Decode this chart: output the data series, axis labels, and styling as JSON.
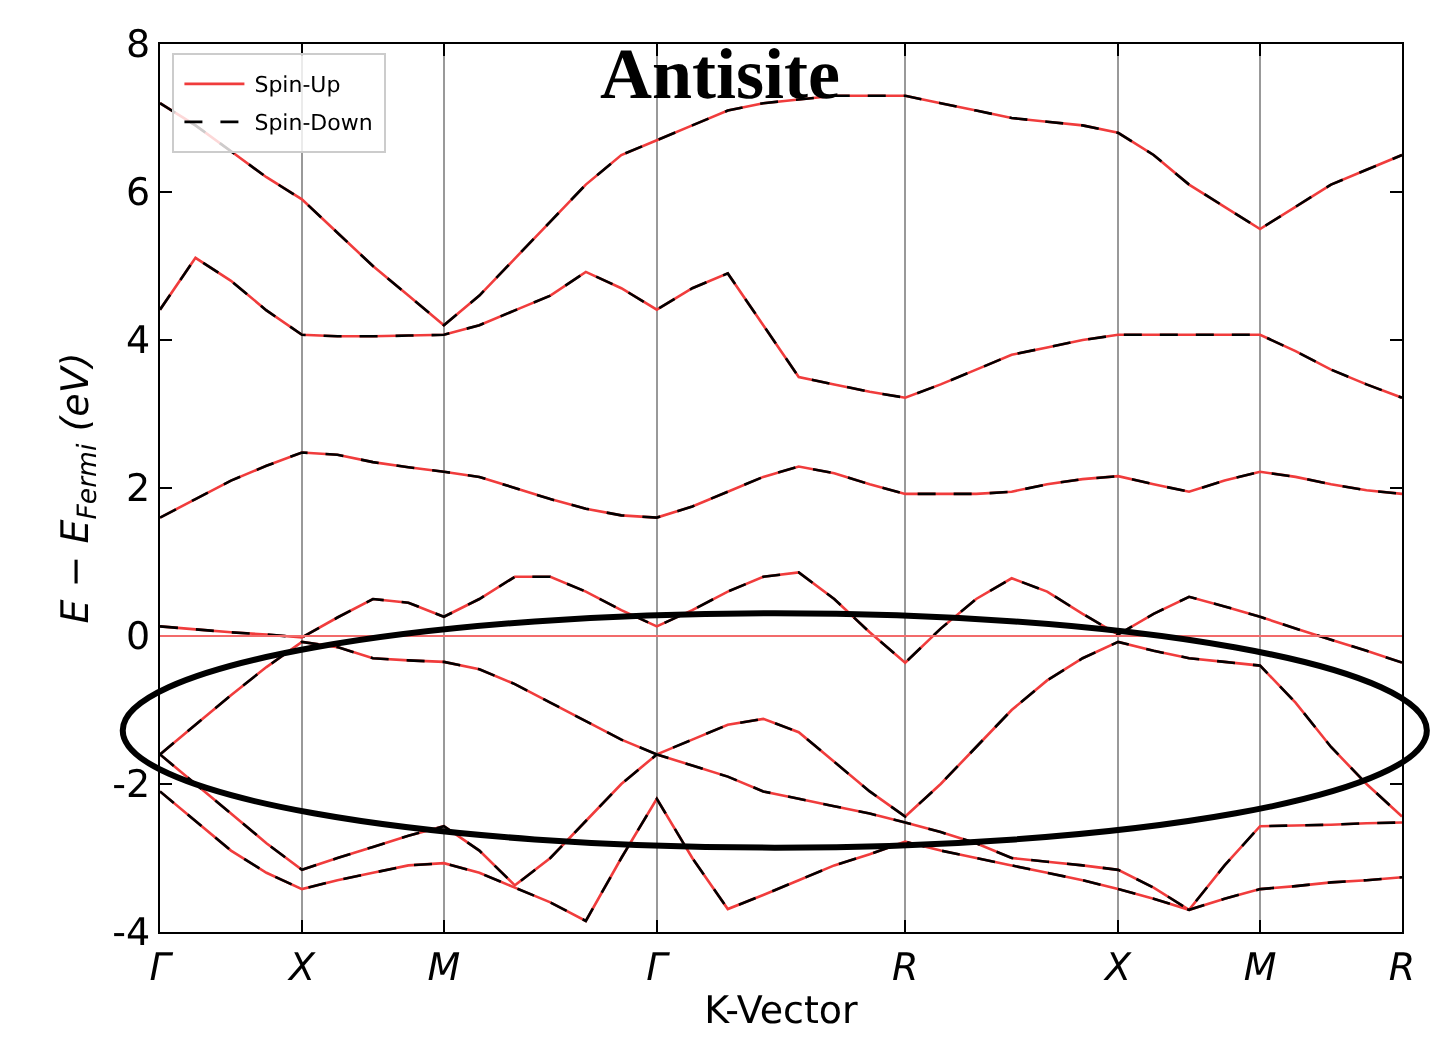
{
  "chart_data": {
    "type": "line",
    "title": "Antisite",
    "xlabel": "K-Vector",
    "ylabel": "E − E$_{Fermi}$ (eV)",
    "categories": [
      "Γ",
      null,
      null,
      null,
      "X",
      null,
      null,
      null,
      "M",
      null,
      null,
      null,
      null,
      null,
      "Γ",
      null,
      null,
      null,
      null,
      null,
      null,
      "R",
      null,
      null,
      null,
      null,
      null,
      "X",
      null,
      null,
      null,
      "M",
      null,
      null,
      null,
      "R"
    ],
    "ylim": [
      -4,
      8
    ],
    "yticks": [
      -4,
      -2,
      0,
      2,
      4,
      6,
      8
    ],
    "grid": "x",
    "legend": "top left",
    "marker": "none",
    "ref_lines": [
      {
        "axis": "y",
        "value": 0,
        "color": "#f26b6b",
        "line_style": "solid"
      }
    ],
    "series": [
      {
        "name": "Spin-Up",
        "color": "#f03c3c",
        "line_style": "solid",
        "values": [
          -1.6,
          -1.2,
          -0.8,
          -0.42,
          -0.08,
          -0.15,
          -0.3,
          -0.33,
          -0.35,
          -0.45,
          -0.65,
          -0.9,
          -1.15,
          -1.4,
          -1.6,
          -1.4,
          -1.2,
          -1.12,
          -1.3,
          -1.7,
          -2.1,
          -2.44,
          -2.0,
          -1.5,
          -1.0,
          -0.6,
          -0.3,
          -0.08,
          -0.2,
          -0.3,
          -0.35,
          -0.4,
          -0.9,
          -1.5,
          -2.0,
          -2.44
        ]
      },
      {
        "color": "#f03c3c",
        "line_style": "solid",
        "values": [
          0.13,
          0.09,
          0.05,
          0.02,
          -0.02,
          0.25,
          0.5,
          0.45,
          0.26,
          0.5,
          0.8,
          0.8,
          0.6,
          0.35,
          0.13,
          0.35,
          0.6,
          0.8,
          0.86,
          0.5,
          0.05,
          -0.36,
          0.1,
          0.5,
          0.78,
          0.6,
          0.3,
          0.02,
          0.3,
          0.53,
          0.4,
          0.26,
          0.1,
          -0.05,
          -0.2,
          -0.36
        ]
      },
      {
        "color": "#f03c3c",
        "line_style": "solid",
        "values": [
          1.6,
          1.85,
          2.1,
          2.3,
          2.48,
          2.45,
          2.35,
          2.28,
          2.22,
          2.15,
          2.0,
          1.85,
          1.72,
          1.63,
          1.6,
          1.75,
          1.95,
          2.15,
          2.29,
          2.2,
          2.05,
          1.92,
          1.92,
          1.92,
          1.95,
          2.05,
          2.12,
          2.16,
          2.05,
          1.95,
          2.1,
          2.22,
          2.15,
          2.05,
          1.97,
          1.92
        ]
      },
      {
        "color": "#f03c3c",
        "line_style": "solid",
        "values": [
          4.41,
          5.11,
          4.8,
          4.4,
          4.07,
          4.05,
          4.05,
          4.06,
          4.07,
          4.2,
          4.4,
          4.6,
          4.92,
          4.7,
          4.41,
          4.7,
          4.9,
          4.2,
          3.5,
          3.4,
          3.3,
          3.22,
          3.4,
          3.6,
          3.8,
          3.9,
          4.0,
          4.07,
          4.07,
          4.07,
          4.07,
          4.07,
          3.85,
          3.6,
          3.4,
          3.22
        ]
      },
      {
        "color": "#f03c3c",
        "line_style": "solid",
        "values": [
          7.2,
          6.9,
          6.55,
          6.2,
          5.9,
          5.45,
          5.0,
          4.6,
          4.2,
          4.6,
          5.1,
          5.6,
          6.1,
          6.5,
          6.7,
          6.9,
          7.1,
          7.2,
          7.25,
          7.3,
          7.3,
          7.3,
          7.2,
          7.1,
          7.0,
          6.95,
          6.9,
          6.8,
          6.5,
          6.1,
          5.8,
          5.5,
          5.8,
          6.1,
          6.3,
          6.5
        ]
      },
      {
        "color": "#f03c3c",
        "line_style": "solid",
        "values": [
          -1.6,
          -2.0,
          -2.4,
          -2.8,
          -3.16,
          -3.0,
          -2.85,
          -2.7,
          -2.57,
          -2.9,
          -3.37,
          -3.0,
          -2.5,
          -2.0,
          -1.6,
          -1.75,
          -1.9,
          -2.1,
          -2.2,
          -2.3,
          -2.4,
          -2.52,
          -2.65,
          -2.8,
          -3.0,
          -3.05,
          -3.1,
          -3.16,
          -3.4,
          -3.7,
          -3.1,
          -2.57,
          -2.56,
          -2.55,
          -2.53,
          -2.52
        ]
      },
      {
        "color": "#f03c3c",
        "line_style": "solid",
        "values": [
          -2.1,
          -2.5,
          -2.9,
          -3.2,
          -3.42,
          -3.3,
          -3.2,
          -3.1,
          -3.07,
          -3.2,
          -3.4,
          -3.6,
          -3.85,
          -3.0,
          -2.2,
          -3.0,
          -3.69,
          -3.5,
          -3.3,
          -3.1,
          -2.95,
          -2.78,
          -2.9,
          -3.0,
          -3.1,
          -3.2,
          -3.3,
          -3.42,
          -3.55,
          -3.7,
          -3.55,
          -3.42,
          -3.38,
          -3.33,
          -3.3,
          -3.26
        ]
      },
      {
        "name": "Spin-Down",
        "color": "#000000",
        "line_style": "dashed",
        "values": [
          -1.6,
          -1.2,
          -0.8,
          -0.42,
          -0.08,
          -0.15,
          -0.3,
          -0.33,
          -0.35,
          -0.45,
          -0.65,
          -0.9,
          -1.15,
          -1.4,
          -1.6,
          -1.4,
          -1.2,
          -1.12,
          -1.3,
          -1.7,
          -2.1,
          -2.44,
          -2.0,
          -1.5,
          -1.0,
          -0.6,
          -0.3,
          -0.08,
          -0.2,
          -0.3,
          -0.35,
          -0.4,
          -0.9,
          -1.5,
          -2.0,
          -2.44
        ]
      },
      {
        "color": "#000000",
        "line_style": "dashed",
        "values": [
          0.13,
          0.09,
          0.05,
          0.02,
          -0.02,
          0.25,
          0.5,
          0.45,
          0.26,
          0.5,
          0.8,
          0.8,
          0.6,
          0.35,
          0.13,
          0.35,
          0.6,
          0.8,
          0.86,
          0.5,
          0.05,
          -0.36,
          0.1,
          0.5,
          0.78,
          0.6,
          0.3,
          0.02,
          0.3,
          0.53,
          0.4,
          0.26,
          0.1,
          -0.05,
          -0.2,
          -0.36
        ]
      },
      {
        "color": "#000000",
        "line_style": "dashed",
        "values": [
          1.6,
          1.85,
          2.1,
          2.3,
          2.48,
          2.45,
          2.35,
          2.28,
          2.22,
          2.15,
          2.0,
          1.85,
          1.72,
          1.63,
          1.6,
          1.75,
          1.95,
          2.15,
          2.29,
          2.2,
          2.05,
          1.92,
          1.92,
          1.92,
          1.95,
          2.05,
          2.12,
          2.16,
          2.05,
          1.95,
          2.1,
          2.22,
          2.15,
          2.05,
          1.97,
          1.92
        ]
      },
      {
        "color": "#000000",
        "line_style": "dashed",
        "values": [
          4.41,
          5.11,
          4.8,
          4.4,
          4.07,
          4.05,
          4.05,
          4.06,
          4.07,
          4.2,
          4.4,
          4.6,
          4.92,
          4.7,
          4.41,
          4.7,
          4.9,
          4.2,
          3.5,
          3.4,
          3.3,
          3.22,
          3.4,
          3.6,
          3.8,
          3.9,
          4.0,
          4.07,
          4.07,
          4.07,
          4.07,
          4.07,
          3.85,
          3.6,
          3.4,
          3.22
        ]
      },
      {
        "color": "#000000",
        "line_style": "dashed",
        "values": [
          7.2,
          6.9,
          6.55,
          6.2,
          5.9,
          5.45,
          5.0,
          4.6,
          4.2,
          4.6,
          5.1,
          5.6,
          6.1,
          6.5,
          6.7,
          6.9,
          7.1,
          7.2,
          7.25,
          7.3,
          7.3,
          7.3,
          7.2,
          7.1,
          7.0,
          6.95,
          6.9,
          6.8,
          6.5,
          6.1,
          5.8,
          5.5,
          5.8,
          6.1,
          6.3,
          6.5
        ]
      },
      {
        "color": "#000000",
        "line_style": "dashed",
        "values": [
          -1.6,
          -2.0,
          -2.4,
          -2.8,
          -3.16,
          -3.0,
          -2.85,
          -2.7,
          -2.57,
          -2.9,
          -3.37,
          -3.0,
          -2.5,
          -2.0,
          -1.6,
          -1.75,
          -1.9,
          -2.1,
          -2.2,
          -2.3,
          -2.4,
          -2.52,
          -2.65,
          -2.8,
          -3.0,
          -3.05,
          -3.1,
          -3.16,
          -3.4,
          -3.7,
          -3.1,
          -2.57,
          -2.56,
          -2.55,
          -2.53,
          -2.52
        ]
      },
      {
        "color": "#000000",
        "line_style": "dashed",
        "values": [
          -2.1,
          -2.5,
          -2.9,
          -3.2,
          -3.42,
          -3.3,
          -3.2,
          -3.1,
          -3.07,
          -3.2,
          -3.4,
          -3.6,
          -3.85,
          -3.0,
          -2.2,
          -3.0,
          -3.69,
          -3.5,
          -3.3,
          -3.1,
          -2.95,
          -2.78,
          -2.9,
          -3.0,
          -3.1,
          -3.2,
          -3.3,
          -3.42,
          -3.55,
          -3.7,
          -3.55,
          -3.42,
          -3.38,
          -3.33,
          -3.3,
          -3.26
        ]
      }
    ]
  }
}
